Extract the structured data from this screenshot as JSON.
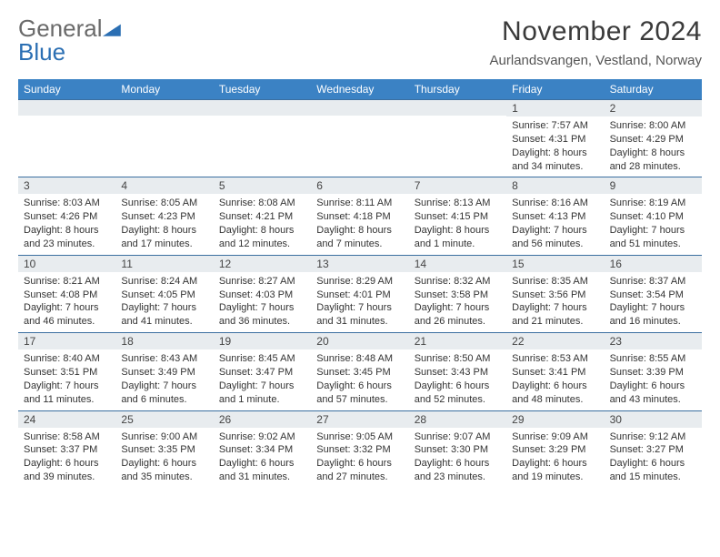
{
  "logo": {
    "word1": "General",
    "word2": "Blue",
    "tri_color": "#2b6fb3"
  },
  "title": "November 2024",
  "location": "Aurlandsvangen, Vestland, Norway",
  "colors": {
    "header_bg": "#3b82c4",
    "header_text": "#ffffff",
    "daynum_bg": "#e8ecef",
    "row_sep": "#3b6fa0",
    "text": "#333333"
  },
  "daysOfWeek": [
    "Sunday",
    "Monday",
    "Tuesday",
    "Wednesday",
    "Thursday",
    "Friday",
    "Saturday"
  ],
  "weeks": [
    [
      {
        "n": "",
        "sunrise": "",
        "sunset": "",
        "daylight": ""
      },
      {
        "n": "",
        "sunrise": "",
        "sunset": "",
        "daylight": ""
      },
      {
        "n": "",
        "sunrise": "",
        "sunset": "",
        "daylight": ""
      },
      {
        "n": "",
        "sunrise": "",
        "sunset": "",
        "daylight": ""
      },
      {
        "n": "",
        "sunrise": "",
        "sunset": "",
        "daylight": ""
      },
      {
        "n": "1",
        "sunrise": "Sunrise: 7:57 AM",
        "sunset": "Sunset: 4:31 PM",
        "daylight": "Daylight: 8 hours and 34 minutes."
      },
      {
        "n": "2",
        "sunrise": "Sunrise: 8:00 AM",
        "sunset": "Sunset: 4:29 PM",
        "daylight": "Daylight: 8 hours and 28 minutes."
      }
    ],
    [
      {
        "n": "3",
        "sunrise": "Sunrise: 8:03 AM",
        "sunset": "Sunset: 4:26 PM",
        "daylight": "Daylight: 8 hours and 23 minutes."
      },
      {
        "n": "4",
        "sunrise": "Sunrise: 8:05 AM",
        "sunset": "Sunset: 4:23 PM",
        "daylight": "Daylight: 8 hours and 17 minutes."
      },
      {
        "n": "5",
        "sunrise": "Sunrise: 8:08 AM",
        "sunset": "Sunset: 4:21 PM",
        "daylight": "Daylight: 8 hours and 12 minutes."
      },
      {
        "n": "6",
        "sunrise": "Sunrise: 8:11 AM",
        "sunset": "Sunset: 4:18 PM",
        "daylight": "Daylight: 8 hours and 7 minutes."
      },
      {
        "n": "7",
        "sunrise": "Sunrise: 8:13 AM",
        "sunset": "Sunset: 4:15 PM",
        "daylight": "Daylight: 8 hours and 1 minute."
      },
      {
        "n": "8",
        "sunrise": "Sunrise: 8:16 AM",
        "sunset": "Sunset: 4:13 PM",
        "daylight": "Daylight: 7 hours and 56 minutes."
      },
      {
        "n": "9",
        "sunrise": "Sunrise: 8:19 AM",
        "sunset": "Sunset: 4:10 PM",
        "daylight": "Daylight: 7 hours and 51 minutes."
      }
    ],
    [
      {
        "n": "10",
        "sunrise": "Sunrise: 8:21 AM",
        "sunset": "Sunset: 4:08 PM",
        "daylight": "Daylight: 7 hours and 46 minutes."
      },
      {
        "n": "11",
        "sunrise": "Sunrise: 8:24 AM",
        "sunset": "Sunset: 4:05 PM",
        "daylight": "Daylight: 7 hours and 41 minutes."
      },
      {
        "n": "12",
        "sunrise": "Sunrise: 8:27 AM",
        "sunset": "Sunset: 4:03 PM",
        "daylight": "Daylight: 7 hours and 36 minutes."
      },
      {
        "n": "13",
        "sunrise": "Sunrise: 8:29 AM",
        "sunset": "Sunset: 4:01 PM",
        "daylight": "Daylight: 7 hours and 31 minutes."
      },
      {
        "n": "14",
        "sunrise": "Sunrise: 8:32 AM",
        "sunset": "Sunset: 3:58 PM",
        "daylight": "Daylight: 7 hours and 26 minutes."
      },
      {
        "n": "15",
        "sunrise": "Sunrise: 8:35 AM",
        "sunset": "Sunset: 3:56 PM",
        "daylight": "Daylight: 7 hours and 21 minutes."
      },
      {
        "n": "16",
        "sunrise": "Sunrise: 8:37 AM",
        "sunset": "Sunset: 3:54 PM",
        "daylight": "Daylight: 7 hours and 16 minutes."
      }
    ],
    [
      {
        "n": "17",
        "sunrise": "Sunrise: 8:40 AM",
        "sunset": "Sunset: 3:51 PM",
        "daylight": "Daylight: 7 hours and 11 minutes."
      },
      {
        "n": "18",
        "sunrise": "Sunrise: 8:43 AM",
        "sunset": "Sunset: 3:49 PM",
        "daylight": "Daylight: 7 hours and 6 minutes."
      },
      {
        "n": "19",
        "sunrise": "Sunrise: 8:45 AM",
        "sunset": "Sunset: 3:47 PM",
        "daylight": "Daylight: 7 hours and 1 minute."
      },
      {
        "n": "20",
        "sunrise": "Sunrise: 8:48 AM",
        "sunset": "Sunset: 3:45 PM",
        "daylight": "Daylight: 6 hours and 57 minutes."
      },
      {
        "n": "21",
        "sunrise": "Sunrise: 8:50 AM",
        "sunset": "Sunset: 3:43 PM",
        "daylight": "Daylight: 6 hours and 52 minutes."
      },
      {
        "n": "22",
        "sunrise": "Sunrise: 8:53 AM",
        "sunset": "Sunset: 3:41 PM",
        "daylight": "Daylight: 6 hours and 48 minutes."
      },
      {
        "n": "23",
        "sunrise": "Sunrise: 8:55 AM",
        "sunset": "Sunset: 3:39 PM",
        "daylight": "Daylight: 6 hours and 43 minutes."
      }
    ],
    [
      {
        "n": "24",
        "sunrise": "Sunrise: 8:58 AM",
        "sunset": "Sunset: 3:37 PM",
        "daylight": "Daylight: 6 hours and 39 minutes."
      },
      {
        "n": "25",
        "sunrise": "Sunrise: 9:00 AM",
        "sunset": "Sunset: 3:35 PM",
        "daylight": "Daylight: 6 hours and 35 minutes."
      },
      {
        "n": "26",
        "sunrise": "Sunrise: 9:02 AM",
        "sunset": "Sunset: 3:34 PM",
        "daylight": "Daylight: 6 hours and 31 minutes."
      },
      {
        "n": "27",
        "sunrise": "Sunrise: 9:05 AM",
        "sunset": "Sunset: 3:32 PM",
        "daylight": "Daylight: 6 hours and 27 minutes."
      },
      {
        "n": "28",
        "sunrise": "Sunrise: 9:07 AM",
        "sunset": "Sunset: 3:30 PM",
        "daylight": "Daylight: 6 hours and 23 minutes."
      },
      {
        "n": "29",
        "sunrise": "Sunrise: 9:09 AM",
        "sunset": "Sunset: 3:29 PM",
        "daylight": "Daylight: 6 hours and 19 minutes."
      },
      {
        "n": "30",
        "sunrise": "Sunrise: 9:12 AM",
        "sunset": "Sunset: 3:27 PM",
        "daylight": "Daylight: 6 hours and 15 minutes."
      }
    ]
  ]
}
